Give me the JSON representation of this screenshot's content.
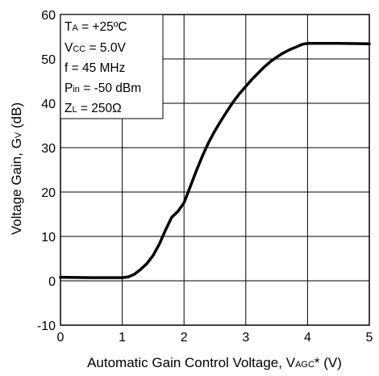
{
  "chart_data": {
    "type": "line",
    "title": "",
    "xlim": [
      0,
      5
    ],
    "ylim": [
      -10,
      60
    ],
    "x_ticks": [
      "0",
      "1",
      "2",
      "3",
      "4",
      "5"
    ],
    "y_ticks": [
      "-10",
      "0",
      "10",
      "20",
      "30",
      "40",
      "50",
      "60"
    ],
    "grid": true,
    "xlabel": {
      "main": "Automatic Gain Control Voltage, V",
      "sub": "AGC",
      "suffix": "*  (V)"
    },
    "ylabel": {
      "main": "Voltage Gain, G",
      "sub": "V",
      "suffix": " (dB)"
    },
    "conditions": [
      {
        "pre": "T",
        "sub": "A",
        "post": " = +25ºC"
      },
      {
        "pre": "V",
        "sub": "CC",
        "post": " = 5.0V"
      },
      {
        "pre": "f = 45 MHz",
        "sub": "",
        "post": ""
      },
      {
        "pre": "P",
        "sub": "in",
        "post": " = -50 dBm"
      },
      {
        "pre": "Z",
        "sub": "L",
        "post": " = 250Ω"
      }
    ],
    "series": [
      {
        "color": "#000000",
        "x": [
          0,
          0.5,
          1.0,
          1.1,
          1.2,
          1.3,
          1.4,
          1.5,
          1.6,
          1.7,
          1.8,
          1.9,
          2.0,
          2.1,
          2.2,
          2.3,
          2.4,
          2.5,
          2.6,
          2.7,
          2.8,
          2.9,
          3.0,
          3.1,
          3.2,
          3.3,
          3.4,
          3.5,
          3.6,
          3.7,
          3.8,
          3.9,
          3.95,
          4.0,
          4.5,
          5.0
        ],
        "y": [
          0.8,
          0.7,
          0.7,
          0.9,
          1.5,
          2.6,
          3.9,
          5.7,
          8.3,
          11.4,
          14.3,
          15.6,
          17.6,
          21.2,
          24.8,
          28.2,
          31.2,
          33.8,
          36.1,
          38.3,
          40.4,
          42.2,
          43.8,
          45.4,
          46.8,
          48.2,
          49.4,
          50.4,
          51.3,
          52.0,
          52.6,
          53.2,
          53.4,
          53.5,
          53.5,
          53.4
        ]
      }
    ]
  }
}
